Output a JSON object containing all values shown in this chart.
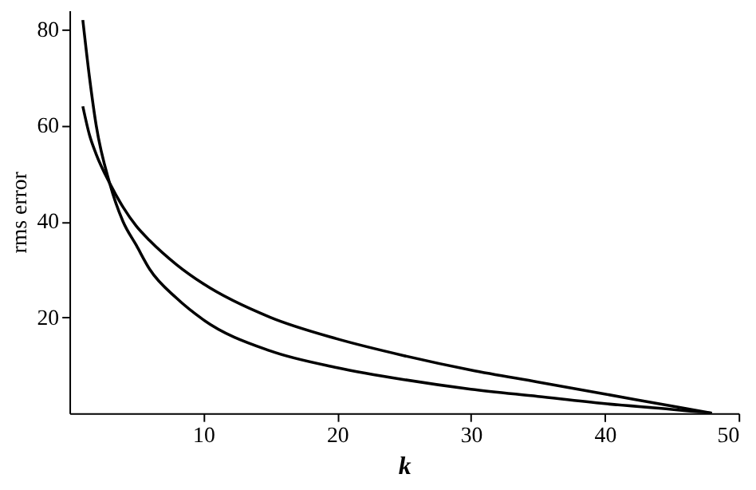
{
  "chart_data": {
    "type": "line",
    "xlabel": "k",
    "ylabel": "rms error",
    "xlim": [
      0,
      50
    ],
    "ylim": [
      0,
      84
    ],
    "xticks": [
      10,
      20,
      30,
      40,
      50
    ],
    "yticks": [
      20,
      40,
      60,
      80
    ],
    "grid": false,
    "marker": "none",
    "line_style": "solid",
    "series": [
      {
        "color": "#000000",
        "x": [
          1,
          1.5,
          2,
          3,
          4,
          5,
          6,
          8,
          10,
          15,
          20,
          25,
          30,
          35,
          40,
          45,
          48
        ],
        "values": [
          82,
          70,
          60,
          48,
          40,
          35,
          30,
          24,
          19.5,
          13,
          9.5,
          7,
          5,
          3.5,
          2,
          0.8,
          0
        ]
      },
      {
        "color": "#000000",
        "x": [
          1,
          1.5,
          2,
          3,
          4,
          5,
          6,
          8,
          10,
          15,
          20,
          25,
          30,
          35,
          40,
          45,
          48
        ],
        "values": [
          64,
          58,
          54,
          48,
          43,
          39,
          36,
          31,
          27,
          20,
          15.5,
          12,
          9,
          6.5,
          4,
          1.5,
          0
        ]
      }
    ]
  }
}
